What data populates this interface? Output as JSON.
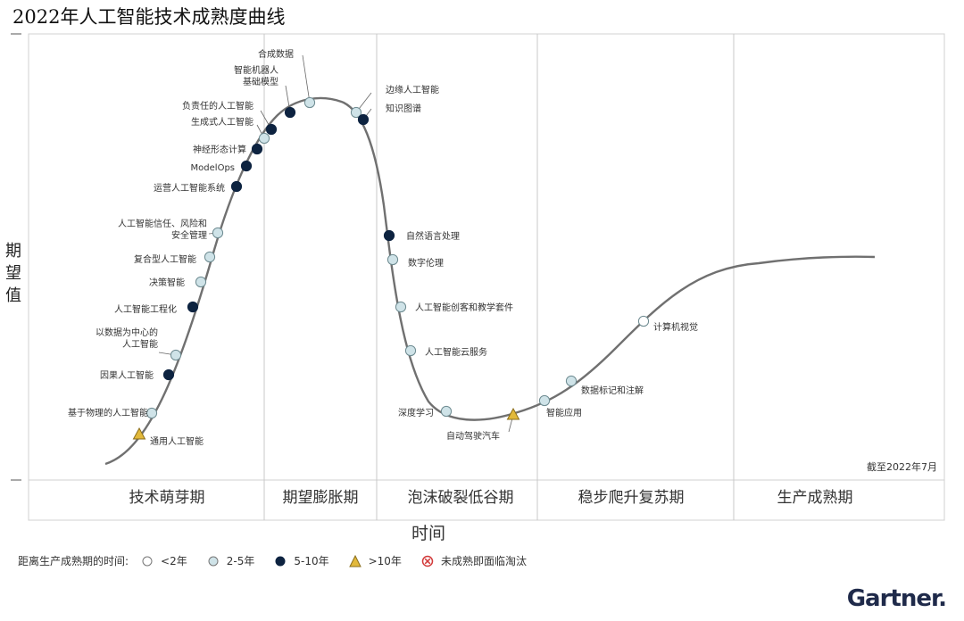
{
  "header": {
    "title": "2022年人工智能技术成熟度曲线"
  },
  "chart_data": {
    "type": "hype-cycle",
    "title": "2022年人工智能技术成熟度曲线",
    "ylabel": "期望值",
    "xlabel": "时间",
    "as_of": "截至2022年7月",
    "phases": [
      "技术萌芽期",
      "期望膨胀期",
      "泡沫破裂低谷期",
      "稳步爬升复苏期",
      "生产成熟期"
    ],
    "colors": {
      "lt2": "#ffffff",
      "y2to5": "#cfe3e8",
      "y5to10": "#0d2340",
      "gt10": "#e2b93b",
      "obsolete": "#d23a3a",
      "curve": "#6b6b6b"
    },
    "technologies": [
      {
        "name": "通用人工智能",
        "category": "gt10",
        "phase": "技术萌芽期"
      },
      {
        "name": "基于物理的人工智能",
        "category": "y2to5",
        "phase": "技术萌芽期"
      },
      {
        "name": "因果人工智能",
        "category": "y5to10",
        "phase": "技术萌芽期"
      },
      {
        "name": "以数据为中心的\n人工智能",
        "category": "y2to5",
        "phase": "技术萌芽期"
      },
      {
        "name": "人工智能工程化",
        "category": "y5to10",
        "phase": "技术萌芽期"
      },
      {
        "name": "决策智能",
        "category": "y2to5",
        "phase": "技术萌芽期"
      },
      {
        "name": "复合型人工智能",
        "category": "y2to5",
        "phase": "技术萌芽期"
      },
      {
        "name": "人工智能信任、风险和\n安全管理",
        "category": "y2to5",
        "phase": "技术萌芽期"
      },
      {
        "name": "运营人工智能系统",
        "category": "y5to10",
        "phase": "技术萌芽期"
      },
      {
        "name": "ModelOps",
        "category": "y5to10",
        "phase": "技术萌芽期"
      },
      {
        "name": "神经形态计算",
        "category": "y5to10",
        "phase": "技术萌芽期"
      },
      {
        "name": "生成式人工智能",
        "category": "y2to5",
        "phase": "期望膨胀期"
      },
      {
        "name": "负责任的人工智能",
        "category": "y5to10",
        "phase": "期望膨胀期"
      },
      {
        "name": "智能机器人\n基础模型",
        "category": "y5to10",
        "phase": "期望膨胀期"
      },
      {
        "name": "合成数据",
        "category": "y2to5",
        "phase": "期望膨胀期"
      },
      {
        "name": "边缘人工智能",
        "category": "y2to5",
        "phase": "期望膨胀期"
      },
      {
        "name": "知识图谱",
        "category": "y5to10",
        "phase": "期望膨胀期"
      },
      {
        "name": "自然语言处理",
        "category": "y5to10",
        "phase": "泡沫破裂低谷期"
      },
      {
        "name": "数字伦理",
        "category": "y2to5",
        "phase": "泡沫破裂低谷期"
      },
      {
        "name": "人工智能创客和教学套件",
        "category": "y2to5",
        "phase": "泡沫破裂低谷期"
      },
      {
        "name": "人工智能云服务",
        "category": "y2to5",
        "phase": "泡沫破裂低谷期"
      },
      {
        "name": "深度学习",
        "category": "y2to5",
        "phase": "泡沫破裂低谷期"
      },
      {
        "name": "自动驾驶汽车",
        "category": "gt10",
        "phase": "泡沫破裂低谷期"
      },
      {
        "name": "智能应用",
        "category": "y2to5",
        "phase": "稳步爬升复苏期"
      },
      {
        "name": "数据标记和注解",
        "category": "y2to5",
        "phase": "稳步爬升复苏期"
      },
      {
        "name": "计算机视觉",
        "category": "lt2",
        "phase": "稳步爬升复苏期"
      }
    ]
  },
  "legend": {
    "title": "距离生产成熟期的时间:",
    "items": [
      {
        "key": "lt2",
        "label": "<2年"
      },
      {
        "key": "y2to5",
        "label": "2-5年"
      },
      {
        "key": "y5to10",
        "label": "5-10年"
      },
      {
        "key": "gt10",
        "label": ">10年"
      },
      {
        "key": "obsolete",
        "label": "未成熟即面临淘汰"
      }
    ]
  },
  "brand": {
    "name": "Gartner"
  }
}
